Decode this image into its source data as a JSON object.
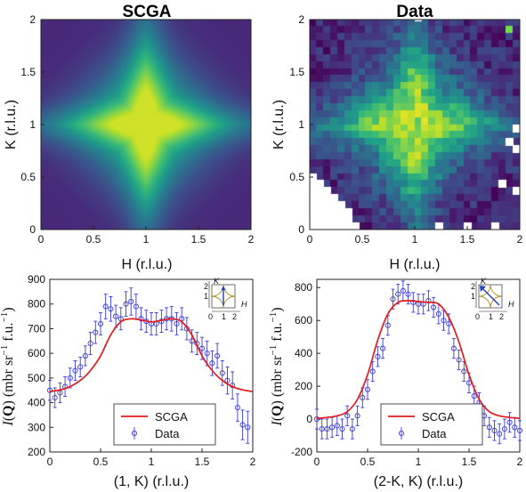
{
  "chart_data": [
    {
      "type": "heatmap",
      "title": "SCGA",
      "xlabel": "H (r.l.u.)",
      "ylabel": "K (r.l.u.)",
      "xlim": [
        0,
        2
      ],
      "ylim": [
        0,
        2
      ],
      "xticks": [
        "0",
        "0.5",
        "1",
        "1.5",
        "2"
      ],
      "yticks": [
        "0",
        "0.5",
        "1",
        "1.5",
        "2"
      ],
      "colormap": "viridis",
      "description_values": "smooth star/diamond-shaped intensity maximum centered at (1,1), arms along diagonals, low intensity at corners"
    },
    {
      "type": "heatmap",
      "title": "Data",
      "xlabel": "H (r.l.u.)",
      "ylabel": "K (r.l.u.)",
      "xlim": [
        0,
        2
      ],
      "ylim": [
        0,
        2
      ],
      "xticks": [
        "0",
        "0.5",
        "1",
        "1.5",
        "2"
      ],
      "yticks": [
        "0",
        "0.5",
        "1",
        "1.5",
        "2"
      ],
      "colormap": "viridis",
      "grid_size": 30,
      "description_values": "pixelated measured intensity, diamond-shaped maximum around (1,1), masked (white) regions in lower-left and right edges"
    },
    {
      "type": "line",
      "xlabel": "(1, K) (r.l.u.)",
      "ylabel": "I(Q) (mbr sr^-1 f.u.^-1)",
      "xlim": [
        0,
        2
      ],
      "ylim": [
        200,
        900
      ],
      "xticks": [
        "0",
        "0.5",
        "1",
        "1.5",
        "2"
      ],
      "yticks": [
        "200",
        "300",
        "400",
        "500",
        "600",
        "700",
        "800",
        "900"
      ],
      "legend": "bottom-center",
      "inset_labels": {
        "k": "K",
        "h": "H",
        "k2": "2",
        "k1": "1",
        "h0": "0",
        "h1": "1",
        "h2": "2"
      },
      "series": [
        {
          "name": "SCGA",
          "style": "line",
          "color": "#e41a1c",
          "x": [
            0,
            0.1,
            0.2,
            0.3,
            0.4,
            0.5,
            0.6,
            0.7,
            0.8,
            0.9,
            1.0,
            1.1,
            1.2,
            1.3,
            1.4,
            1.5,
            1.6,
            1.7,
            1.8,
            1.9,
            2.0
          ],
          "y": [
            445,
            452,
            465,
            490,
            530,
            590,
            675,
            728,
            740,
            735,
            728,
            734,
            740,
            728,
            675,
            590,
            530,
            490,
            465,
            452,
            445
          ]
        },
        {
          "name": "Data",
          "style": "markers-errorbars",
          "color": "#3a3ad6",
          "x": [
            0,
            0.05,
            0.1,
            0.15,
            0.2,
            0.25,
            0.3,
            0.35,
            0.4,
            0.45,
            0.5,
            0.55,
            0.6,
            0.65,
            0.7,
            0.75,
            0.8,
            0.85,
            0.9,
            0.95,
            1.0,
            1.05,
            1.1,
            1.15,
            1.2,
            1.25,
            1.3,
            1.35,
            1.4,
            1.45,
            1.5,
            1.55,
            1.6,
            1.65,
            1.7,
            1.75,
            1.8,
            1.85,
            1.9,
            1.95
          ],
          "y": [
            450,
            420,
            440,
            465,
            500,
            530,
            545,
            590,
            640,
            685,
            720,
            790,
            780,
            750,
            740,
            800,
            810,
            790,
            740,
            730,
            720,
            720,
            730,
            740,
            740,
            720,
            740,
            700,
            650,
            640,
            620,
            600,
            560,
            590,
            520,
            490,
            470,
            380,
            310,
            300
          ],
          "err": [
            40,
            40,
            40,
            40,
            40,
            40,
            40,
            40,
            45,
            45,
            45,
            50,
            50,
            45,
            45,
            50,
            55,
            50,
            45,
            45,
            45,
            45,
            45,
            45,
            50,
            45,
            45,
            45,
            45,
            45,
            45,
            50,
            50,
            50,
            50,
            55,
            55,
            55,
            60,
            65
          ]
        }
      ]
    },
    {
      "type": "line",
      "xlabel": "(2-K, K) (r.l.u.)",
      "ylabel": "I(Q) (mbr sr^-1 f.u.^-1)",
      "xlim": [
        0,
        2
      ],
      "ylim": [
        -200,
        850
      ],
      "xticks": [
        "0",
        "0.5",
        "1",
        "1.5",
        "2"
      ],
      "yticks": [
        "-200",
        "0",
        "200",
        "400",
        "600",
        "800"
      ],
      "legend": "bottom-center",
      "inset_labels": {
        "k": "K",
        "h": "H",
        "k2": "2",
        "k1": "1",
        "h0": "0",
        "h1": "1",
        "h2": "2"
      },
      "series": [
        {
          "name": "SCGA",
          "style": "line",
          "color": "#e41a1c",
          "x": [
            0,
            0.1,
            0.2,
            0.3,
            0.4,
            0.5,
            0.6,
            0.7,
            0.8,
            0.9,
            1.0,
            1.1,
            1.2,
            1.3,
            1.4,
            1.5,
            1.6,
            1.7,
            1.8,
            1.9,
            2.0
          ],
          "y": [
            5,
            10,
            20,
            45,
            120,
            270,
            480,
            640,
            710,
            720,
            715,
            710,
            700,
            620,
            470,
            270,
            120,
            45,
            20,
            10,
            5
          ]
        },
        {
          "name": "Data",
          "style": "markers-errorbars",
          "color": "#3a3ad6",
          "x": [
            0,
            0.05,
            0.1,
            0.15,
            0.2,
            0.25,
            0.3,
            0.35,
            0.4,
            0.45,
            0.5,
            0.55,
            0.6,
            0.65,
            0.7,
            0.75,
            0.8,
            0.85,
            0.9,
            0.95,
            1.0,
            1.05,
            1.1,
            1.15,
            1.2,
            1.25,
            1.3,
            1.35,
            1.4,
            1.45,
            1.5,
            1.55,
            1.6,
            1.65,
            1.7,
            1.75,
            1.8,
            1.85,
            1.9,
            1.95,
            2.0
          ],
          "y": [
            0,
            -60,
            -60,
            -50,
            -40,
            -60,
            20,
            -60,
            20,
            130,
            180,
            290,
            380,
            430,
            570,
            730,
            760,
            780,
            760,
            710,
            700,
            700,
            720,
            680,
            640,
            600,
            580,
            430,
            360,
            290,
            220,
            140,
            100,
            20,
            -50,
            -70,
            -90,
            -60,
            -20,
            -50,
            -70
          ],
          "err": [
            60,
            60,
            60,
            60,
            60,
            60,
            60,
            60,
            60,
            60,
            60,
            60,
            60,
            60,
            60,
            60,
            60,
            60,
            60,
            60,
            60,
            60,
            60,
            60,
            60,
            60,
            60,
            60,
            60,
            60,
            60,
            60,
            60,
            60,
            60,
            60,
            60,
            60,
            60,
            60,
            60
          ]
        }
      ]
    }
  ]
}
